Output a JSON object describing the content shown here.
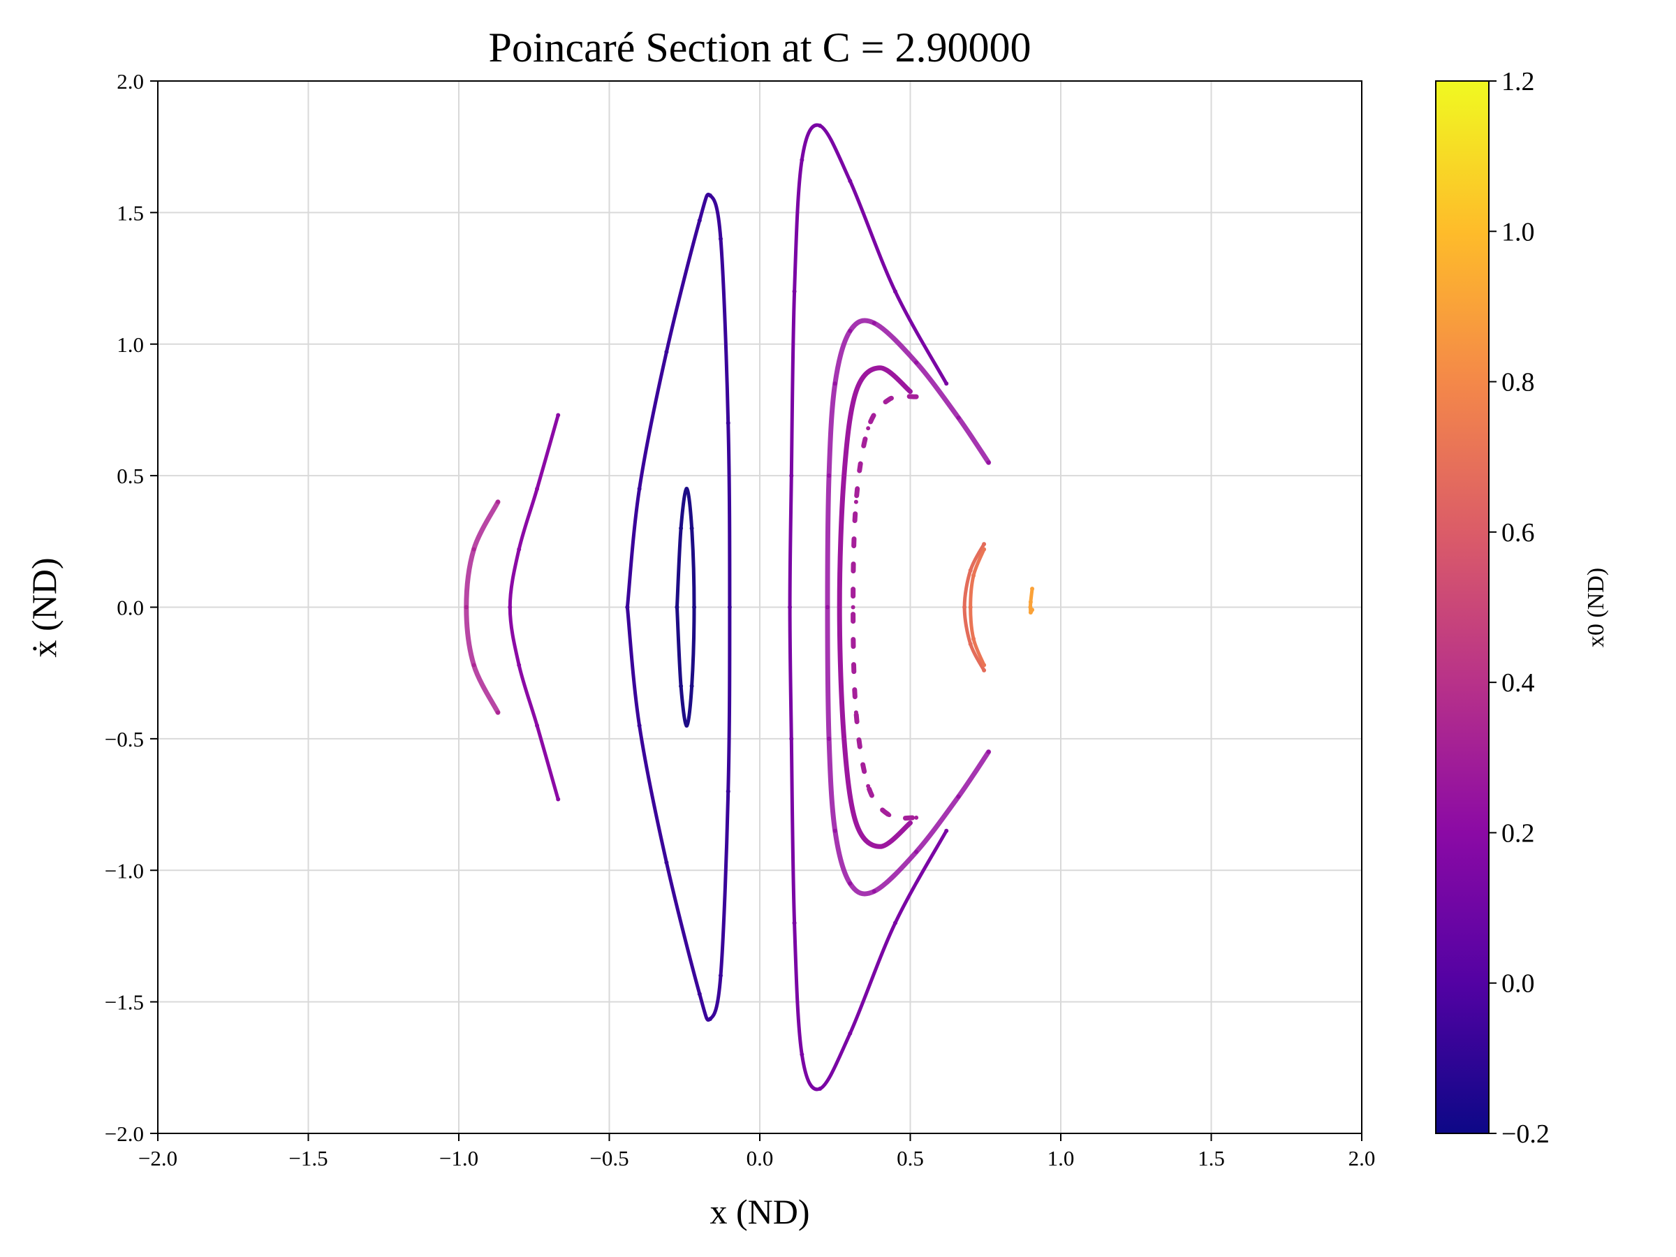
{
  "chart_data": {
    "type": "scatter",
    "title": "Poincaré Section at C = 2.90000",
    "xlabel": "x (ND)",
    "ylabel": "ẋ (ND)",
    "xlim": [
      -2.0,
      2.0
    ],
    "ylim": [
      -2.0,
      2.0
    ],
    "grid": true,
    "x_tick_labels": [
      "−2.0",
      "−1.5",
      "−1.0",
      "−0.5",
      "0.0",
      "0.5",
      "1.0",
      "1.5",
      "2.0"
    ],
    "x_ticks": [
      -2.0,
      -1.5,
      -1.0,
      -0.5,
      0.0,
      0.5,
      1.0,
      1.5,
      2.0
    ],
    "y_tick_labels": [
      "−2.0",
      "−1.5",
      "−1.0",
      "−0.5",
      "0.0",
      "0.5",
      "1.0",
      "1.5",
      "2.0"
    ],
    "y_ticks": [
      -2.0,
      -1.5,
      -1.0,
      -0.5,
      0.0,
      0.5,
      1.0,
      1.5,
      2.0
    ],
    "colorbar": {
      "label": "x0 (ND)",
      "colormap": "plasma",
      "range": [
        -0.2,
        1.2
      ],
      "ticks": [
        -0.2,
        0.0,
        0.2,
        0.4,
        0.6,
        0.8,
        1.0,
        1.2
      ],
      "tick_labels": [
        "−0.2",
        "0.0",
        "0.2",
        "0.4",
        "0.6",
        "0.8",
        "1.0",
        "1.2"
      ],
      "colors": [
        "#0d0887",
        "#5302a3",
        "#8b0aa5",
        "#b83289",
        "#db5c68",
        "#f48849",
        "#febc2a",
        "#f0f921"
      ]
    },
    "series": [
      {
        "x0": -0.25,
        "color": "#1d0c86",
        "points": [
          [
            -0.275,
            0.0
          ],
          [
            -0.262,
            0.3
          ],
          [
            -0.243,
            0.45
          ],
          [
            -0.226,
            0.3
          ],
          [
            -0.218,
            0.0
          ],
          [
            -0.226,
            -0.3
          ],
          [
            -0.243,
            -0.45
          ],
          [
            -0.262,
            -0.3
          ],
          [
            -0.275,
            0.0
          ]
        ]
      },
      {
        "x0": -0.1,
        "color": "#3a049a",
        "points": [
          [
            -0.44,
            0.0
          ],
          [
            -0.4,
            0.45
          ],
          [
            -0.31,
            0.97
          ],
          [
            -0.2,
            1.47
          ],
          [
            -0.165,
            1.565
          ],
          [
            -0.13,
            1.4
          ],
          [
            -0.105,
            0.7
          ],
          [
            -0.1,
            0.0
          ],
          [
            -0.105,
            -0.7
          ],
          [
            -0.13,
            -1.4
          ],
          [
            -0.165,
            -1.565
          ],
          [
            -0.2,
            -1.47
          ],
          [
            -0.31,
            -0.97
          ],
          [
            -0.4,
            -0.45
          ],
          [
            -0.44,
            0.0
          ]
        ]
      },
      {
        "x0": 0.08,
        "color": "#7a06a4",
        "points": [
          [
            0.62,
            0.85
          ],
          [
            0.45,
            1.2
          ],
          [
            0.3,
            1.62
          ],
          [
            0.2,
            1.83
          ],
          [
            0.14,
            1.7
          ],
          [
            0.115,
            1.2
          ],
          [
            0.105,
            0.5
          ],
          [
            0.1,
            0.0
          ],
          [
            0.105,
            -0.5
          ],
          [
            0.115,
            -1.2
          ],
          [
            0.14,
            -1.7
          ],
          [
            0.2,
            -1.83
          ],
          [
            0.3,
            -1.62
          ],
          [
            0.45,
            -1.2
          ],
          [
            0.62,
            -0.85
          ]
        ]
      },
      {
        "x0": 0.1,
        "color": "#8b0aa5",
        "points": [
          [
            -0.67,
            0.73
          ],
          [
            -0.74,
            0.45
          ],
          [
            -0.8,
            0.22
          ],
          [
            -0.83,
            0.0
          ],
          [
            -0.8,
            -0.22
          ],
          [
            -0.74,
            -0.45
          ],
          [
            -0.67,
            -0.73
          ]
        ]
      },
      {
        "x0": 0.2,
        "color": "#9512a2",
        "points": [
          [
            0.76,
            0.55
          ],
          [
            0.66,
            0.72
          ],
          [
            0.52,
            0.93
          ],
          [
            0.38,
            1.08
          ],
          [
            0.3,
            1.05
          ],
          [
            0.25,
            0.85
          ],
          [
            0.23,
            0.5
          ],
          [
            0.225,
            0.0
          ],
          [
            0.23,
            -0.5
          ],
          [
            0.25,
            -0.85
          ],
          [
            0.3,
            -1.05
          ],
          [
            0.38,
            -1.08
          ],
          [
            0.52,
            -0.93
          ],
          [
            0.66,
            -0.72
          ],
          [
            0.76,
            -0.55
          ]
        ]
      },
      {
        "x0": 0.22,
        "color": "#9c179e",
        "points": [
          [
            0.5,
            0.82
          ],
          [
            0.4,
            0.91
          ],
          [
            0.32,
            0.82
          ],
          [
            0.28,
            0.5
          ],
          [
            0.265,
            0.0
          ],
          [
            0.28,
            -0.5
          ],
          [
            0.32,
            -0.82
          ],
          [
            0.4,
            -0.91
          ],
          [
            0.5,
            -0.82
          ]
        ]
      },
      {
        "x0": 0.25,
        "color": "#a51f9a",
        "points": [
          [
            0.52,
            0.8
          ],
          [
            0.43,
            0.79
          ],
          [
            0.36,
            0.68
          ],
          [
            0.32,
            0.4
          ],
          [
            0.31,
            0.0
          ],
          [
            0.32,
            -0.4
          ],
          [
            0.36,
            -0.68
          ],
          [
            0.43,
            -0.79
          ],
          [
            0.52,
            -0.8
          ]
        ]
      },
      {
        "x0": 0.28,
        "color": "#ac2694",
        "points": [
          [
            -0.87,
            0.4
          ],
          [
            -0.95,
            0.22
          ],
          [
            -0.975,
            0.0
          ],
          [
            -0.95,
            -0.22
          ],
          [
            -0.87,
            -0.4
          ]
        ]
      },
      {
        "x0": 0.62,
        "color": "#e36c5a",
        "points": [
          [
            0.745,
            0.24
          ],
          [
            0.7,
            0.14
          ],
          [
            0.68,
            0.0
          ],
          [
            0.7,
            -0.14
          ],
          [
            0.745,
            -0.24
          ]
        ]
      },
      {
        "x0": 0.66,
        "color": "#ea7555",
        "points": [
          [
            0.745,
            0.22
          ],
          [
            0.71,
            0.12
          ],
          [
            0.7,
            0.0
          ],
          [
            0.71,
            -0.12
          ],
          [
            0.745,
            -0.22
          ]
        ]
      },
      {
        "x0": 0.9,
        "color": "#fba238",
        "points": [
          [
            0.905,
            0.07
          ],
          [
            0.9,
            0.02
          ],
          [
            0.899,
            0.0
          ],
          [
            0.9,
            -0.02
          ],
          [
            0.905,
            -0.01
          ]
        ]
      }
    ]
  }
}
